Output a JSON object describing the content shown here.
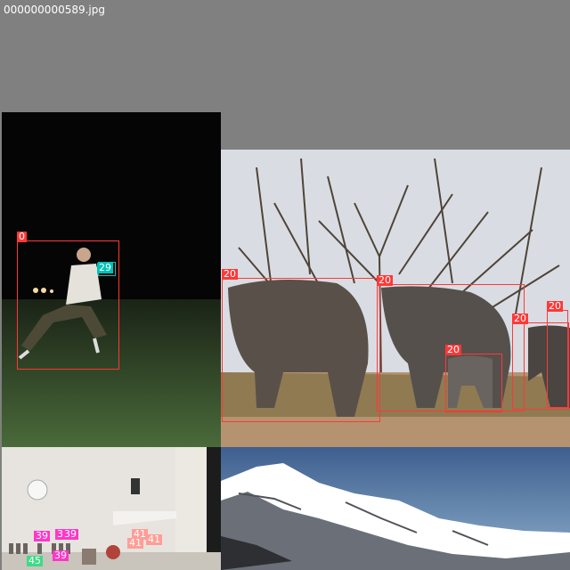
{
  "filename": "000000000589.jpg",
  "colors": {
    "background": "#808080",
    "person": "#ff3838",
    "elephant": "#ff3838",
    "sports_equipment": "#00c2b8",
    "bottle": "#ff37c7",
    "cup": "#ff9d97",
    "bowl": "#3ddb86"
  },
  "labels": {
    "night_person": "0",
    "night_glove": "29",
    "elephant_1": "20",
    "elephant_2": "20",
    "elephant_3": "20",
    "elephant_4": "20",
    "elephant_5": "20",
    "kitchen_1": "39",
    "kitchen_2": "39",
    "kitchen_3": "3",
    "kitchen_4": "39",
    "kitchen_5": "41",
    "kitchen_6": "41",
    "kitchen_7": "41",
    "kitchen_8": "45"
  }
}
